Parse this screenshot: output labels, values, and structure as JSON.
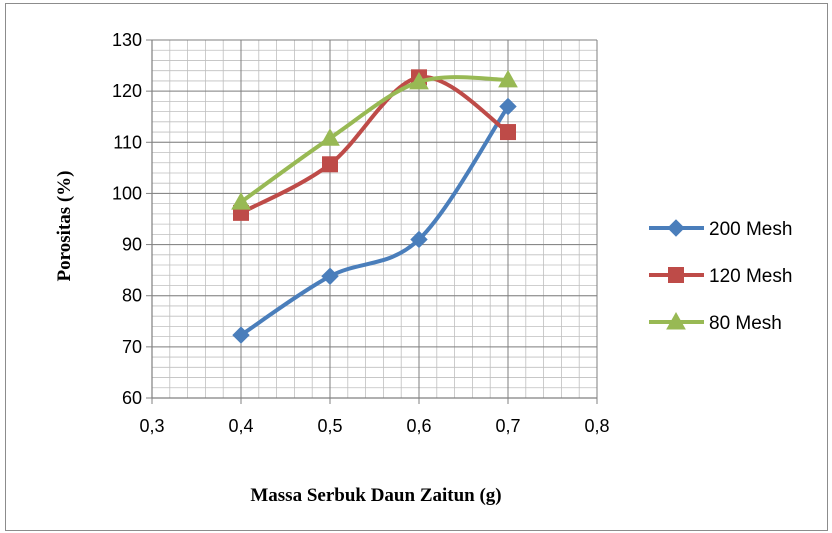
{
  "chart_data": {
    "type": "line",
    "title": "",
    "xlabel": "Massa Serbuk Daun Zaitun (g)",
    "ylabel": "Porositas (%)",
    "xlim": [
      0.3,
      0.8
    ],
    "ylim": [
      60,
      130
    ],
    "x_major_step": 0.1,
    "y_major_step": 10,
    "x_minor_step": 0.02,
    "y_minor_step": 2,
    "x_tick_labels": [
      "0,3",
      "0,4",
      "0,5",
      "0,6",
      "0,7",
      "0,8"
    ],
    "y_tick_labels": [
      "60",
      "70",
      "80",
      "90",
      "100",
      "110",
      "120",
      "130"
    ],
    "grid": true,
    "smooth": true,
    "legend_position": "right",
    "series": [
      {
        "name": "200 Mesh",
        "color": "#4a7ebb",
        "marker": "diamond",
        "x": [
          0.4,
          0.5,
          0.6,
          0.7
        ],
        "y": [
          72.3,
          83.8,
          91.0,
          117.0
        ]
      },
      {
        "name": "120 Mesh",
        "color": "#be4b48",
        "marker": "square",
        "x": [
          0.4,
          0.5,
          0.6,
          0.7
        ],
        "y": [
          96.2,
          105.7,
          122.7,
          112.0
        ]
      },
      {
        "name": "80 Mesh",
        "color": "#98b954",
        "marker": "triangle",
        "x": [
          0.4,
          0.5,
          0.6,
          0.7
        ],
        "y": [
          98.3,
          110.8,
          121.8,
          122.2
        ]
      }
    ]
  }
}
